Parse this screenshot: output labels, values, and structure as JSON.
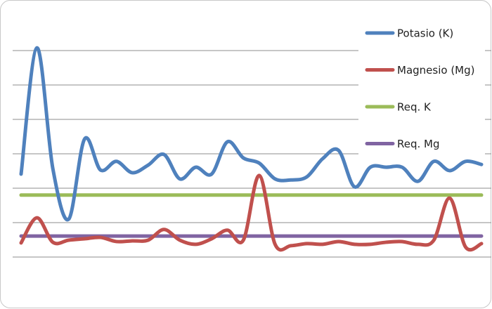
{
  "chart_data": {
    "type": "line",
    "categories": [
      null,
      null,
      null,
      null,
      null,
      null,
      null,
      null,
      null,
      null,
      null,
      null,
      null,
      null,
      null,
      null,
      null,
      null,
      null,
      null,
      null,
      null,
      null,
      null,
      null,
      null,
      null,
      null,
      null,
      null
    ],
    "ylim": [
      0,
      7
    ],
    "yticks": [
      0,
      1,
      2,
      3,
      4,
      5,
      6
    ],
    "grid": true,
    "legend": "top-right",
    "series": [
      {
        "name": "Potasio (K)",
        "color": "#4f81bd",
        "values": [
          2.41,
          6.08,
          2.57,
          1.1,
          3.43,
          2.53,
          2.78,
          2.45,
          2.67,
          2.98,
          2.27,
          2.61,
          2.41,
          3.35,
          2.88,
          2.73,
          2.27,
          2.24,
          2.33,
          2.86,
          3.1,
          2.04,
          2.61,
          2.61,
          2.61,
          2.2,
          2.78,
          2.51,
          2.78,
          2.69
        ]
      },
      {
        "name": "Magnesio (Mg)",
        "color": "#c0504d",
        "values": [
          0.41,
          1.14,
          0.43,
          0.49,
          0.53,
          0.57,
          0.45,
          0.47,
          0.49,
          0.8,
          0.49,
          0.37,
          0.53,
          0.78,
          0.49,
          2.37,
          0.37,
          0.33,
          0.39,
          0.37,
          0.45,
          0.37,
          0.37,
          0.43,
          0.45,
          0.37,
          0.49,
          1.71,
          0.29,
          0.39
        ]
      },
      {
        "name": "Req. K",
        "color": "#9bbb59",
        "values": [
          1.8,
          1.8,
          1.8,
          1.8,
          1.8,
          1.8,
          1.8,
          1.8,
          1.8,
          1.8,
          1.8,
          1.8,
          1.8,
          1.8,
          1.8,
          1.8,
          1.8,
          1.8,
          1.8,
          1.8,
          1.8,
          1.8,
          1.8,
          1.8,
          1.8,
          1.8,
          1.8,
          1.8,
          1.8,
          1.8
        ]
      },
      {
        "name": "Req. Mg",
        "color": "#8064a2",
        "values": [
          0.61,
          0.61,
          0.61,
          0.61,
          0.61,
          0.61,
          0.61,
          0.61,
          0.61,
          0.61,
          0.61,
          0.61,
          0.61,
          0.61,
          0.61,
          0.61,
          0.61,
          0.61,
          0.61,
          0.61,
          0.61,
          0.61,
          0.61,
          0.61,
          0.61,
          0.61,
          0.61,
          0.61,
          0.61,
          0.61
        ]
      }
    ]
  }
}
